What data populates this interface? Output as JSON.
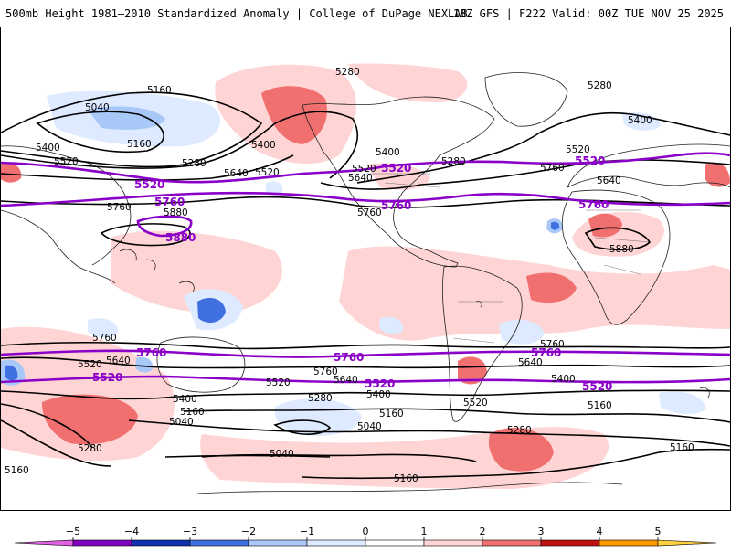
{
  "header": {
    "title": "500mb Height 1981–2010 Standardized Anomaly | College of DuPage NEXLAB",
    "run_info": "18Z GFS | F222 Valid: 00Z TUE NOV 25 2025"
  },
  "colors": {
    "contour_black": "#000000",
    "contour_purple": "#8a00c8",
    "land_outline": "#222222"
  },
  "contour_labels": {
    "c5040": "5040",
    "c5160": "5160",
    "c5280": "5280",
    "c5400": "5400",
    "c5520": "5520",
    "c5640": "5640",
    "c5760": "5760",
    "c5880": "5880"
  },
  "colorbar": {
    "ticks": [
      {
        "value": -5,
        "label": "−5"
      },
      {
        "value": -4,
        "label": "−4"
      },
      {
        "value": -3,
        "label": "−3"
      },
      {
        "value": -2,
        "label": "−2"
      },
      {
        "value": -1,
        "label": "−1"
      },
      {
        "value": 0,
        "label": "0"
      },
      {
        "value": 1,
        "label": "1"
      },
      {
        "value": 2,
        "label": "2"
      },
      {
        "value": 3,
        "label": "3"
      },
      {
        "value": 4,
        "label": "4"
      },
      {
        "value": 5,
        "label": "5"
      }
    ],
    "bins": [
      {
        "from": -6,
        "to": -5,
        "color": "#e060e0"
      },
      {
        "from": -5,
        "to": -4,
        "color": "#8000c0"
      },
      {
        "from": -4,
        "to": -3,
        "color": "#1030b0"
      },
      {
        "from": -3,
        "to": -2,
        "color": "#4070e0"
      },
      {
        "from": -2,
        "to": -1,
        "color": "#a8c8f8"
      },
      {
        "from": -1,
        "to": 0,
        "color": "#ddeaff"
      },
      {
        "from": 0,
        "to": 1,
        "color": "#ffffff"
      },
      {
        "from": 1,
        "to": 2,
        "color": "#ffd4d4"
      },
      {
        "from": 2,
        "to": 3,
        "color": "#f07070"
      },
      {
        "from": 3,
        "to": 4,
        "color": "#c01010"
      },
      {
        "from": 4,
        "to": 5,
        "color": "#ff9900"
      },
      {
        "from": 5,
        "to": 6,
        "color": "#ffd040"
      }
    ]
  }
}
